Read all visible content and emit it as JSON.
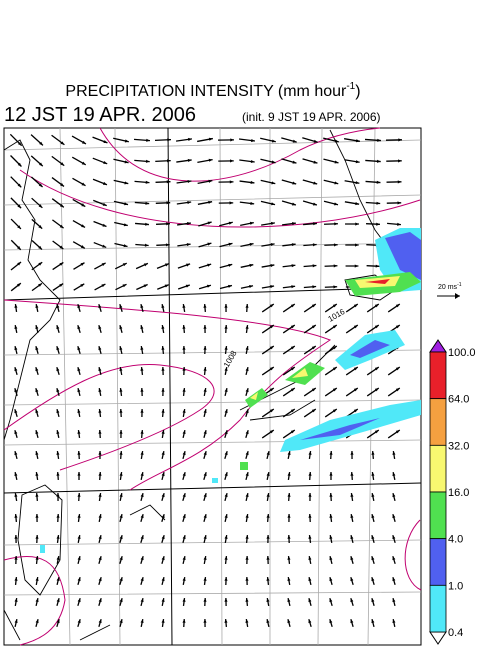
{
  "header": {
    "title": "PRECIPITATION INTENSITY (mm hour",
    "title_exponent": "-1",
    "title_close": ")",
    "valid_time": "12 JST 19 APR. 2006",
    "init_time": "(init. 9 JST 19 APR. 2006)"
  },
  "map": {
    "isobar_labels": [
      "1016",
      "1008"
    ]
  },
  "reference_vector": {
    "label": "20 ms",
    "exponent": "-1"
  },
  "colorbar": {
    "levels": [
      "100.0",
      "64.0",
      "32.0",
      "16.0",
      "4.0",
      "1.0",
      "0.4"
    ],
    "colors": [
      "#e8202a",
      "#f5a040",
      "#f8f870",
      "#50e050",
      "#5060f0",
      "#50e8f8"
    ],
    "over_color": "#a020e0",
    "under_color": "#ffffff"
  }
}
